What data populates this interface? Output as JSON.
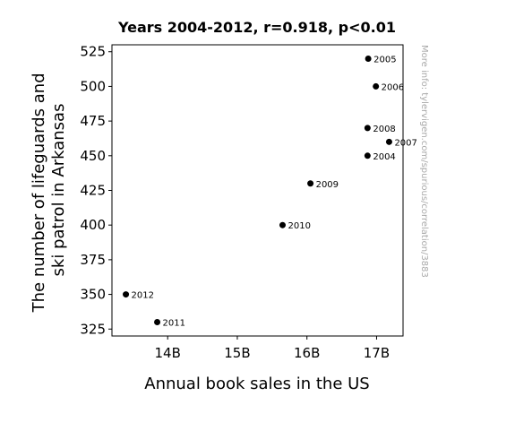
{
  "chart_data": {
    "type": "scatter",
    "title": "Years 2004-2012, r=0.918, p<0.01",
    "xlabel": "Annual book sales in the US",
    "ylabel_lines": [
      "The number of lifeguards and",
      "ski patrol in Arkansas"
    ],
    "xlim": [
      13.2,
      17.38
    ],
    "ylim": [
      320,
      530
    ],
    "x_ticks": [
      {
        "value": 14,
        "label": "14B"
      },
      {
        "value": 15,
        "label": "15B"
      },
      {
        "value": 16,
        "label": "16B"
      },
      {
        "value": 17,
        "label": "17B"
      }
    ],
    "y_ticks": [
      {
        "value": 325,
        "label": "325"
      },
      {
        "value": 350,
        "label": "350"
      },
      {
        "value": 375,
        "label": "375"
      },
      {
        "value": 400,
        "label": "400"
      },
      {
        "value": 425,
        "label": "425"
      },
      {
        "value": 450,
        "label": "450"
      },
      {
        "value": 475,
        "label": "475"
      },
      {
        "value": 500,
        "label": "500"
      },
      {
        "value": 525,
        "label": "525"
      }
    ],
    "points": [
      {
        "label": "2004",
        "x": 16.87,
        "y": 450
      },
      {
        "label": "2005",
        "x": 16.88,
        "y": 520
      },
      {
        "label": "2006",
        "x": 16.99,
        "y": 500
      },
      {
        "label": "2007",
        "x": 17.18,
        "y": 460
      },
      {
        "label": "2008",
        "x": 16.87,
        "y": 470
      },
      {
        "label": "2009",
        "x": 16.05,
        "y": 430
      },
      {
        "label": "2010",
        "x": 15.65,
        "y": 400
      },
      {
        "label": "2011",
        "x": 13.85,
        "y": 330
      },
      {
        "label": "2012",
        "x": 13.4,
        "y": 350
      }
    ],
    "point_color": "#000000",
    "grid": false,
    "legend": "none",
    "watermark": "More info: tylervigen.com/spurious/correlation/3883"
  }
}
